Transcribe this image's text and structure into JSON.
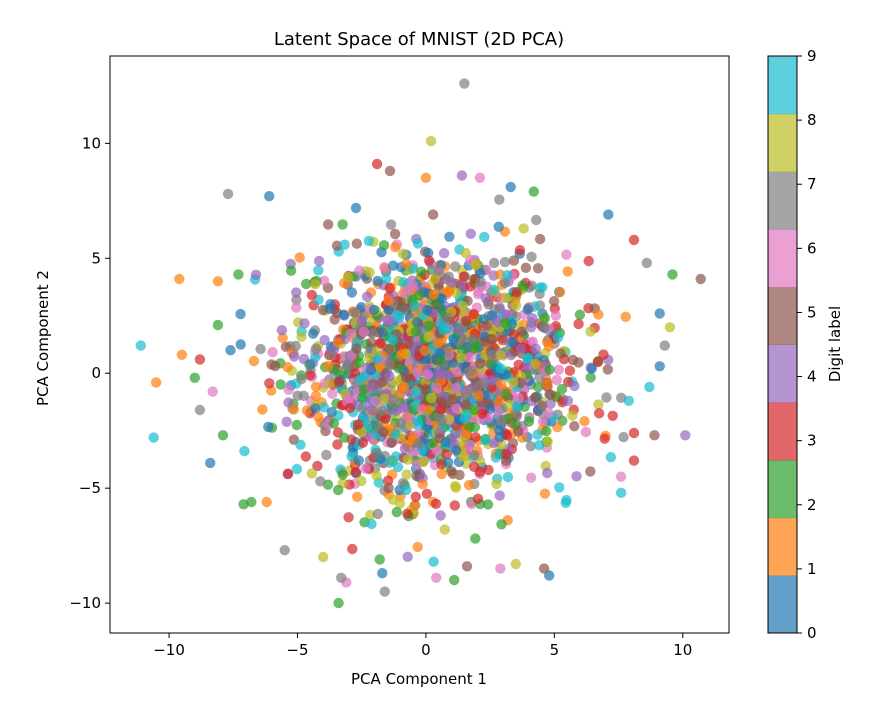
{
  "chart_data": {
    "type": "scatter",
    "title": "Latent Space of MNIST (2D PCA)",
    "xlabel": "PCA Component 1",
    "ylabel": "PCA Component 2",
    "xlim": [
      -12.3,
      11.8
    ],
    "ylim": [
      -11.3,
      13.8
    ],
    "xticks": [
      -10,
      -5,
      0,
      5,
      10
    ],
    "yticks": [
      -10,
      -5,
      0,
      5,
      10
    ],
    "xtick_labels": [
      "−10",
      "−5",
      "0",
      "5",
      "10"
    ],
    "ytick_labels": [
      "−10",
      "−5",
      "0",
      "5",
      "10"
    ],
    "grid": false,
    "colormap": "tab10",
    "point_alpha": 0.7,
    "colorbar": {
      "label": "Digit label",
      "range": [
        0,
        9
      ],
      "ticks": [
        0,
        1,
        2,
        3,
        4,
        5,
        6,
        7,
        8,
        9
      ],
      "tick_labels": [
        "0",
        "1",
        "2",
        "3",
        "4",
        "5",
        "6",
        "7",
        "8",
        "9"
      ],
      "colors": [
        "#1f77b4",
        "#ff7f0e",
        "#2ca02c",
        "#d62728",
        "#9467bd",
        "#8c564b",
        "#e377c2",
        "#7f7f7f",
        "#bcbd22",
        "#17becf"
      ]
    },
    "points": [
      {
        "x": -11.1,
        "y": 1.2,
        "label": 9
      },
      {
        "x": -10.6,
        "y": -2.8,
        "label": 9
      },
      {
        "x": -10.5,
        "y": -0.4,
        "label": 1
      },
      {
        "x": -9.6,
        "y": 4.1,
        "label": 1
      },
      {
        "x": -9.5,
        "y": 0.8,
        "label": 1
      },
      {
        "x": -9.0,
        "y": -0.2,
        "label": 2
      },
      {
        "x": -8.8,
        "y": 0.6,
        "label": 3
      },
      {
        "x": -8.8,
        "y": -1.6,
        "label": 7
      },
      {
        "x": -8.4,
        "y": -3.9,
        "label": 0
      },
      {
        "x": -8.3,
        "y": -0.8,
        "label": 6
      },
      {
        "x": -8.1,
        "y": 2.1,
        "label": 2
      },
      {
        "x": -8.1,
        "y": 4.0,
        "label": 1
      },
      {
        "x": -7.9,
        "y": -2.7,
        "label": 2
      },
      {
        "x": -7.7,
        "y": 7.8,
        "label": 7
      },
      {
        "x": -6.1,
        "y": 7.7,
        "label": 0
      },
      {
        "x": -7.3,
        "y": 4.3,
        "label": 2
      },
      {
        "x": -7.1,
        "y": -5.7,
        "label": 2
      },
      {
        "x": -6.8,
        "y": -5.6,
        "label": 2
      },
      {
        "x": -6.2,
        "y": -5.6,
        "label": 1
      },
      {
        "x": -1.9,
        "y": 9.1,
        "label": 3
      },
      {
        "x": -1.4,
        "y": 8.8,
        "label": 5
      },
      {
        "x": 1.5,
        "y": 12.6,
        "label": 7
      },
      {
        "x": 0.2,
        "y": 10.1,
        "label": 8
      },
      {
        "x": 0.0,
        "y": 8.5,
        "label": 1
      },
      {
        "x": 1.4,
        "y": 8.6,
        "label": 4
      },
      {
        "x": 2.1,
        "y": 8.5,
        "label": 6
      },
      {
        "x": 3.3,
        "y": 8.1,
        "label": 0
      },
      {
        "x": 4.2,
        "y": 7.9,
        "label": 2
      },
      {
        "x": 7.1,
        "y": 6.9,
        "label": 0
      },
      {
        "x": 8.1,
        "y": 5.8,
        "label": 3
      },
      {
        "x": 8.6,
        "y": 4.8,
        "label": 7
      },
      {
        "x": 9.6,
        "y": 4.3,
        "label": 2
      },
      {
        "x": 10.7,
        "y": 4.1,
        "label": 5
      },
      {
        "x": 9.1,
        "y": 2.6,
        "label": 0
      },
      {
        "x": 9.5,
        "y": 2.0,
        "label": 8
      },
      {
        "x": 9.3,
        "y": 1.2,
        "label": 7
      },
      {
        "x": 9.1,
        "y": 0.3,
        "label": 0
      },
      {
        "x": 8.7,
        "y": -0.6,
        "label": 9
      },
      {
        "x": 7.9,
        "y": -1.2,
        "label": 9
      },
      {
        "x": 10.1,
        "y": -2.7,
        "label": 4
      },
      {
        "x": 8.9,
        "y": -2.7,
        "label": 5
      },
      {
        "x": 8.1,
        "y": -2.6,
        "label": 3
      },
      {
        "x": 8.1,
        "y": -3.8,
        "label": 3
      },
      {
        "x": 7.6,
        "y": -4.5,
        "label": 6
      },
      {
        "x": 7.6,
        "y": -5.2,
        "label": 9
      },
      {
        "x": 4.8,
        "y": -8.8,
        "label": 0
      },
      {
        "x": 4.6,
        "y": -8.5,
        "label": 5
      },
      {
        "x": 3.5,
        "y": -8.3,
        "label": 8
      },
      {
        "x": 2.9,
        "y": -8.5,
        "label": 6
      },
      {
        "x": 1.6,
        "y": -8.4,
        "label": 5
      },
      {
        "x": 1.1,
        "y": -9.0,
        "label": 2
      },
      {
        "x": 0.4,
        "y": -8.9,
        "label": 6
      },
      {
        "x": -1.7,
        "y": -8.7,
        "label": 0
      },
      {
        "x": -1.6,
        "y": -9.5,
        "label": 7
      },
      {
        "x": -3.4,
        "y": -10.0,
        "label": 2
      },
      {
        "x": -3.1,
        "y": -9.1,
        "label": 6
      },
      {
        "x": -3.3,
        "y": -8.9,
        "label": 7
      },
      {
        "x": -4.0,
        "y": -8.0,
        "label": 8
      },
      {
        "x": -5.5,
        "y": -7.7,
        "label": 7
      },
      {
        "x": -1.8,
        "y": -8.1,
        "label": 2
      },
      {
        "x": 0.3,
        "y": -8.2,
        "label": 9
      }
    ],
    "cluster": {
      "center": [
        0.2,
        0.0
      ],
      "spread": [
        4.2,
        4.1
      ],
      "count": 2000
    }
  }
}
